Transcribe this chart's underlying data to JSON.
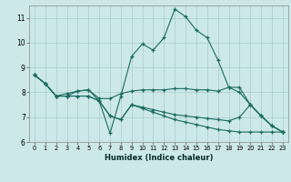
{
  "xlabel": "Humidex (Indice chaleur)",
  "background_color": "#cce8e8",
  "line_color": "#1a6b60",
  "grid_color": "#aacccc",
  "xlim": [
    -0.5,
    23.5
  ],
  "ylim": [
    6,
    11.5
  ],
  "yticks": [
    6,
    7,
    8,
    9,
    10,
    11
  ],
  "xticks": [
    0,
    1,
    2,
    3,
    4,
    5,
    6,
    7,
    8,
    9,
    10,
    11,
    12,
    13,
    14,
    15,
    16,
    17,
    18,
    19,
    20,
    21,
    22,
    23
  ],
  "line1_y": [
    8.7,
    8.35,
    7.85,
    7.85,
    8.05,
    8.1,
    7.65,
    6.35,
    7.85,
    9.45,
    9.95,
    9.7,
    10.2,
    11.35,
    11.05,
    10.5,
    10.2,
    9.3,
    8.2,
    8.2,
    7.5,
    7.05,
    6.65,
    6.4
  ],
  "line2_y": [
    8.7,
    8.35,
    7.85,
    7.95,
    8.05,
    8.1,
    7.75,
    7.75,
    7.95,
    8.05,
    8.1,
    8.1,
    8.1,
    8.15,
    8.15,
    8.1,
    8.1,
    8.05,
    8.2,
    8.0,
    7.5,
    7.05,
    6.65,
    6.4
  ],
  "line3_y": [
    8.7,
    8.35,
    7.85,
    7.85,
    7.85,
    7.85,
    7.65,
    7.05,
    6.9,
    7.5,
    7.4,
    7.3,
    7.2,
    7.1,
    7.05,
    7.0,
    6.95,
    6.9,
    6.85,
    7.0,
    7.5,
    7.05,
    6.65,
    6.4
  ],
  "line4_y": [
    8.7,
    8.35,
    7.85,
    7.85,
    7.85,
    7.85,
    7.65,
    7.05,
    6.9,
    7.5,
    7.35,
    7.2,
    7.05,
    6.9,
    6.8,
    6.7,
    6.6,
    6.5,
    6.45,
    6.4,
    6.4,
    6.4,
    6.4,
    6.4
  ]
}
